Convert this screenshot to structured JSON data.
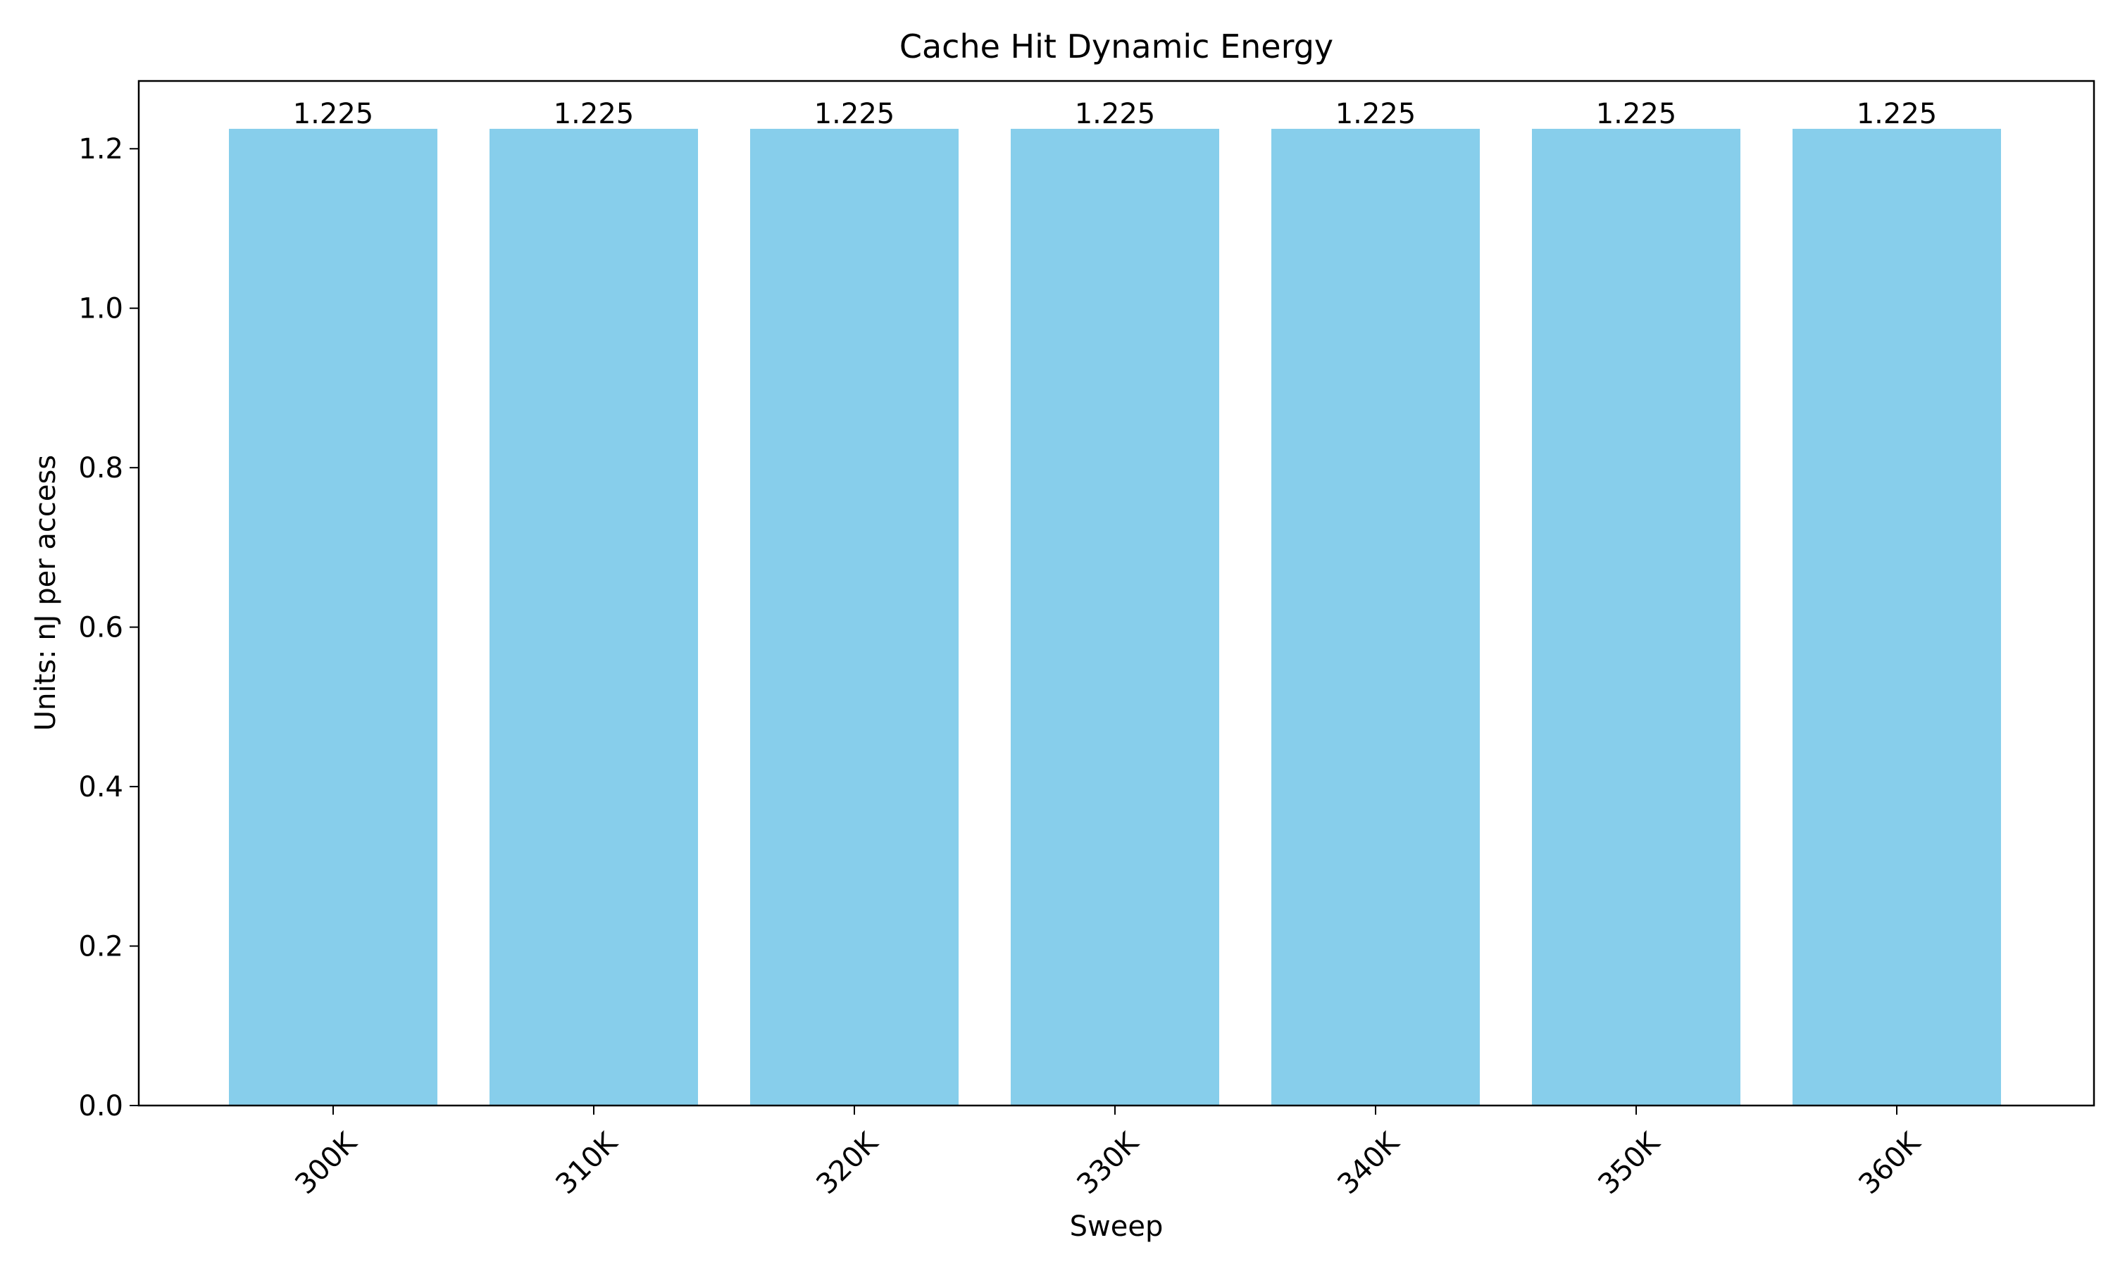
{
  "chart_data": {
    "type": "bar",
    "title": "Cache Hit Dynamic Energy",
    "xlabel": "Sweep",
    "ylabel": "Units: nJ per access",
    "categories": [
      "300K",
      "310K",
      "320K",
      "330K",
      "340K",
      "350K",
      "360K"
    ],
    "values": [
      1.225,
      1.225,
      1.225,
      1.225,
      1.225,
      1.225,
      1.225
    ],
    "value_labels": [
      "1.225",
      "1.225",
      "1.225",
      "1.225",
      "1.225",
      "1.225",
      "1.225"
    ],
    "ylim": [
      0,
      1.285
    ],
    "yticks": [
      0.0,
      0.2,
      0.4,
      0.6,
      0.8,
      1.0,
      1.2
    ],
    "ytick_labels": [
      "0.0",
      "0.2",
      "0.4",
      "0.6",
      "0.8",
      "1.0",
      "1.2"
    ],
    "bar_color": "#87ceeb",
    "grid": false,
    "legend": "none"
  }
}
